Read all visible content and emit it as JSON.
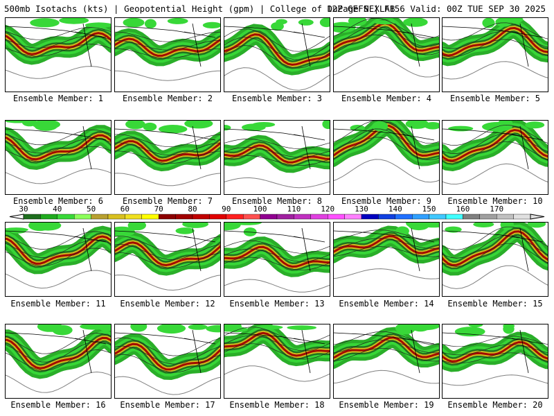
{
  "header": {
    "left": "500mb Isotachs (kts) | Geopotential Height (gpm) | College of DuPage NEXLAB",
    "right": "12Z GEFS | F156 Valid: 00Z TUE SEP 30 2025"
  },
  "members": [
    {
      "label": "Ensemble Member: 1"
    },
    {
      "label": "Ensemble Member: 2"
    },
    {
      "label": "Ensemble Member: 3"
    },
    {
      "label": "Ensemble Member: 4"
    },
    {
      "label": "Ensemble Member: 5"
    },
    {
      "label": "Ensemble Member: 6"
    },
    {
      "label": "Ensemble Member: 7"
    },
    {
      "label": "Ensemble Member: 8"
    },
    {
      "label": "Ensemble Member: 9"
    },
    {
      "label": "Ensemble Member: 10"
    },
    {
      "label": "Ensemble Member: 11"
    },
    {
      "label": "Ensemble Member: 12"
    },
    {
      "label": "Ensemble Member: 13"
    },
    {
      "label": "Ensemble Member: 14"
    },
    {
      "label": "Ensemble Member: 15"
    },
    {
      "label": "Ensemble Member: 16"
    },
    {
      "label": "Ensemble Member: 17"
    },
    {
      "label": "Ensemble Member: 18"
    },
    {
      "label": "Ensemble Member: 19"
    },
    {
      "label": "Ensemble Member: 20"
    }
  ],
  "scale": {
    "ticks": [
      "30",
      "40",
      "50",
      "60",
      "70",
      "80",
      "90",
      "100",
      "110",
      "120",
      "130",
      "140",
      "150",
      "160",
      "170"
    ],
    "colors": [
      "#1e6e1e",
      "#1faa1e",
      "#38d838",
      "#8cff5a",
      "#b8a030",
      "#d8c020",
      "#f0e020",
      "#ffff00",
      "#8b0000",
      "#a00000",
      "#c00000",
      "#e00000",
      "#ff2020",
      "#ff5050",
      "#900090",
      "#a020a0",
      "#c030c0",
      "#e040e0",
      "#ff50ff",
      "#ff80ff",
      "#0000c0",
      "#1040e0",
      "#2070ff",
      "#30a0ff",
      "#40c8ff",
      "#40ffff",
      "#808080",
      "#a0a0a0",
      "#c0c0c0",
      "#e0e0e0"
    ]
  }
}
